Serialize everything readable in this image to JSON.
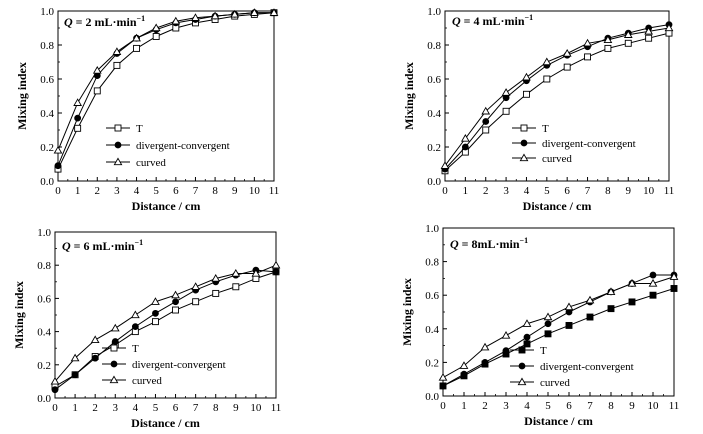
{
  "charts": [
    {
      "type": "line",
      "annotation_prefix": "Q",
      "annotation_rest": " = 2 mL·min",
      "annotation_sup": "−1",
      "xlabel": "Distance / cm",
      "ylabel": "Mixing index",
      "xlim": [
        0,
        11
      ],
      "ylim": [
        0,
        1.0
      ],
      "xticks": [
        "0",
        "1",
        "2",
        "3",
        "4",
        "5",
        "6",
        "7",
        "8",
        "9",
        "10",
        "11"
      ],
      "yticks": [
        "0.0",
        "0.2",
        "0.4",
        "0.6",
        "0.8",
        "1.0"
      ],
      "x": [
        0,
        1,
        2,
        3,
        4,
        5,
        6,
        7,
        8,
        9,
        10,
        11
      ],
      "series": [
        {
          "name": "T",
          "marker": "open-square",
          "values": [
            0.07,
            0.31,
            0.53,
            0.68,
            0.78,
            0.85,
            0.9,
            0.93,
            0.95,
            0.97,
            0.98,
            0.99
          ]
        },
        {
          "name": "divergent-convergent",
          "marker": "filled-circle",
          "values": [
            0.09,
            0.37,
            0.62,
            0.75,
            0.84,
            0.89,
            0.93,
            0.95,
            0.97,
            0.98,
            0.99,
            0.99
          ]
        },
        {
          "name": "curved",
          "marker": "open-triangle",
          "values": [
            0.18,
            0.46,
            0.65,
            0.76,
            0.84,
            0.9,
            0.94,
            0.96,
            0.97,
            0.98,
            0.99,
            0.99
          ]
        }
      ]
    },
    {
      "type": "line",
      "annotation_prefix": "Q",
      "annotation_rest": " = 4 mL·min",
      "annotation_sup": "−1",
      "xlabel": "Distance / cm",
      "ylabel": "Mixing index",
      "xlim": [
        0,
        11
      ],
      "ylim": [
        0,
        1.0
      ],
      "xticks": [
        "0",
        "1",
        "2",
        "3",
        "4",
        "5",
        "6",
        "7",
        "8",
        "9",
        "10",
        "11"
      ],
      "yticks": [
        "0.0",
        "0.2",
        "0.4",
        "0.6",
        "0.8",
        "1.0"
      ],
      "x": [
        0,
        1,
        2,
        3,
        4,
        5,
        6,
        7,
        8,
        9,
        10,
        11
      ],
      "series": [
        {
          "name": "T",
          "marker": "open-square",
          "values": [
            0.06,
            0.17,
            0.3,
            0.41,
            0.51,
            0.6,
            0.67,
            0.73,
            0.78,
            0.81,
            0.84,
            0.87
          ]
        },
        {
          "name": "divergent-convergent",
          "marker": "filled-circle",
          "values": [
            0.07,
            0.2,
            0.35,
            0.49,
            0.59,
            0.68,
            0.74,
            0.79,
            0.84,
            0.87,
            0.9,
            0.92
          ]
        },
        {
          "name": "curved",
          "marker": "open-triangle",
          "values": [
            0.09,
            0.25,
            0.41,
            0.52,
            0.61,
            0.7,
            0.75,
            0.81,
            0.83,
            0.86,
            0.88,
            0.9
          ]
        }
      ]
    },
    {
      "type": "line",
      "annotation_prefix": "Q",
      "annotation_rest": " = 6 mL·min",
      "annotation_sup": "−1",
      "xlabel": "Distance / cm",
      "ylabel": "Mixing index",
      "xlim": [
        0,
        11
      ],
      "ylim": [
        0,
        1.0
      ],
      "xticks": [
        "0",
        "1",
        "2",
        "3",
        "4",
        "5",
        "6",
        "7",
        "8",
        "9",
        "10",
        "11"
      ],
      "yticks": [
        "0.0",
        "0.2",
        "0.4",
        "0.6",
        "0.8",
        "1.0"
      ],
      "x": [
        0,
        1,
        2,
        3,
        4,
        5,
        6,
        7,
        8,
        9,
        10,
        11
      ],
      "series": [
        {
          "name": "T",
          "marker": "open-square",
          "values": [
            0.07,
            0.14,
            0.25,
            0.32,
            0.4,
            0.46,
            0.53,
            0.58,
            0.63,
            0.67,
            0.72,
            0.76
          ]
        },
        {
          "name": "divergent-convergent",
          "marker": "filled-circle",
          "values": [
            0.05,
            0.14,
            0.24,
            0.34,
            0.43,
            0.51,
            0.58,
            0.65,
            0.7,
            0.74,
            0.77,
            0.76
          ]
        },
        {
          "name": "curved",
          "marker": "open-triangle",
          "values": [
            0.1,
            0.24,
            0.35,
            0.42,
            0.5,
            0.58,
            0.62,
            0.67,
            0.72,
            0.75,
            0.75,
            0.8
          ]
        }
      ]
    },
    {
      "type": "line",
      "annotation_prefix": "Q",
      "annotation_rest": " = 8mL·min",
      "annotation_sup": "−1",
      "xlabel": "Distance / cm",
      "ylabel": "Mixing index",
      "xlim": [
        0,
        11
      ],
      "ylim": [
        0,
        1.0
      ],
      "xticks": [
        "0",
        "1",
        "2",
        "3",
        "4",
        "5",
        "6",
        "7",
        "8",
        "9",
        "10",
        "11"
      ],
      "yticks": [
        "0.0",
        "0.2",
        "0.4",
        "0.6",
        "0.8",
        "1.0"
      ],
      "x": [
        0,
        1,
        2,
        3,
        4,
        5,
        6,
        7,
        8,
        9,
        10,
        11
      ],
      "series": [
        {
          "name": "T",
          "marker": "filled-square",
          "values": [
            0.06,
            0.12,
            0.19,
            0.25,
            0.31,
            0.37,
            0.42,
            0.47,
            0.52,
            0.56,
            0.6,
            0.64
          ]
        },
        {
          "name": "divergent-convergent",
          "marker": "filled-circle",
          "values": [
            0.06,
            0.13,
            0.2,
            0.27,
            0.35,
            0.43,
            0.5,
            0.56,
            0.62,
            0.67,
            0.72,
            0.72
          ]
        },
        {
          "name": "curved",
          "marker": "open-triangle",
          "values": [
            0.11,
            0.18,
            0.29,
            0.36,
            0.43,
            0.47,
            0.53,
            0.57,
            0.62,
            0.67,
            0.67,
            0.71
          ]
        }
      ]
    }
  ]
}
